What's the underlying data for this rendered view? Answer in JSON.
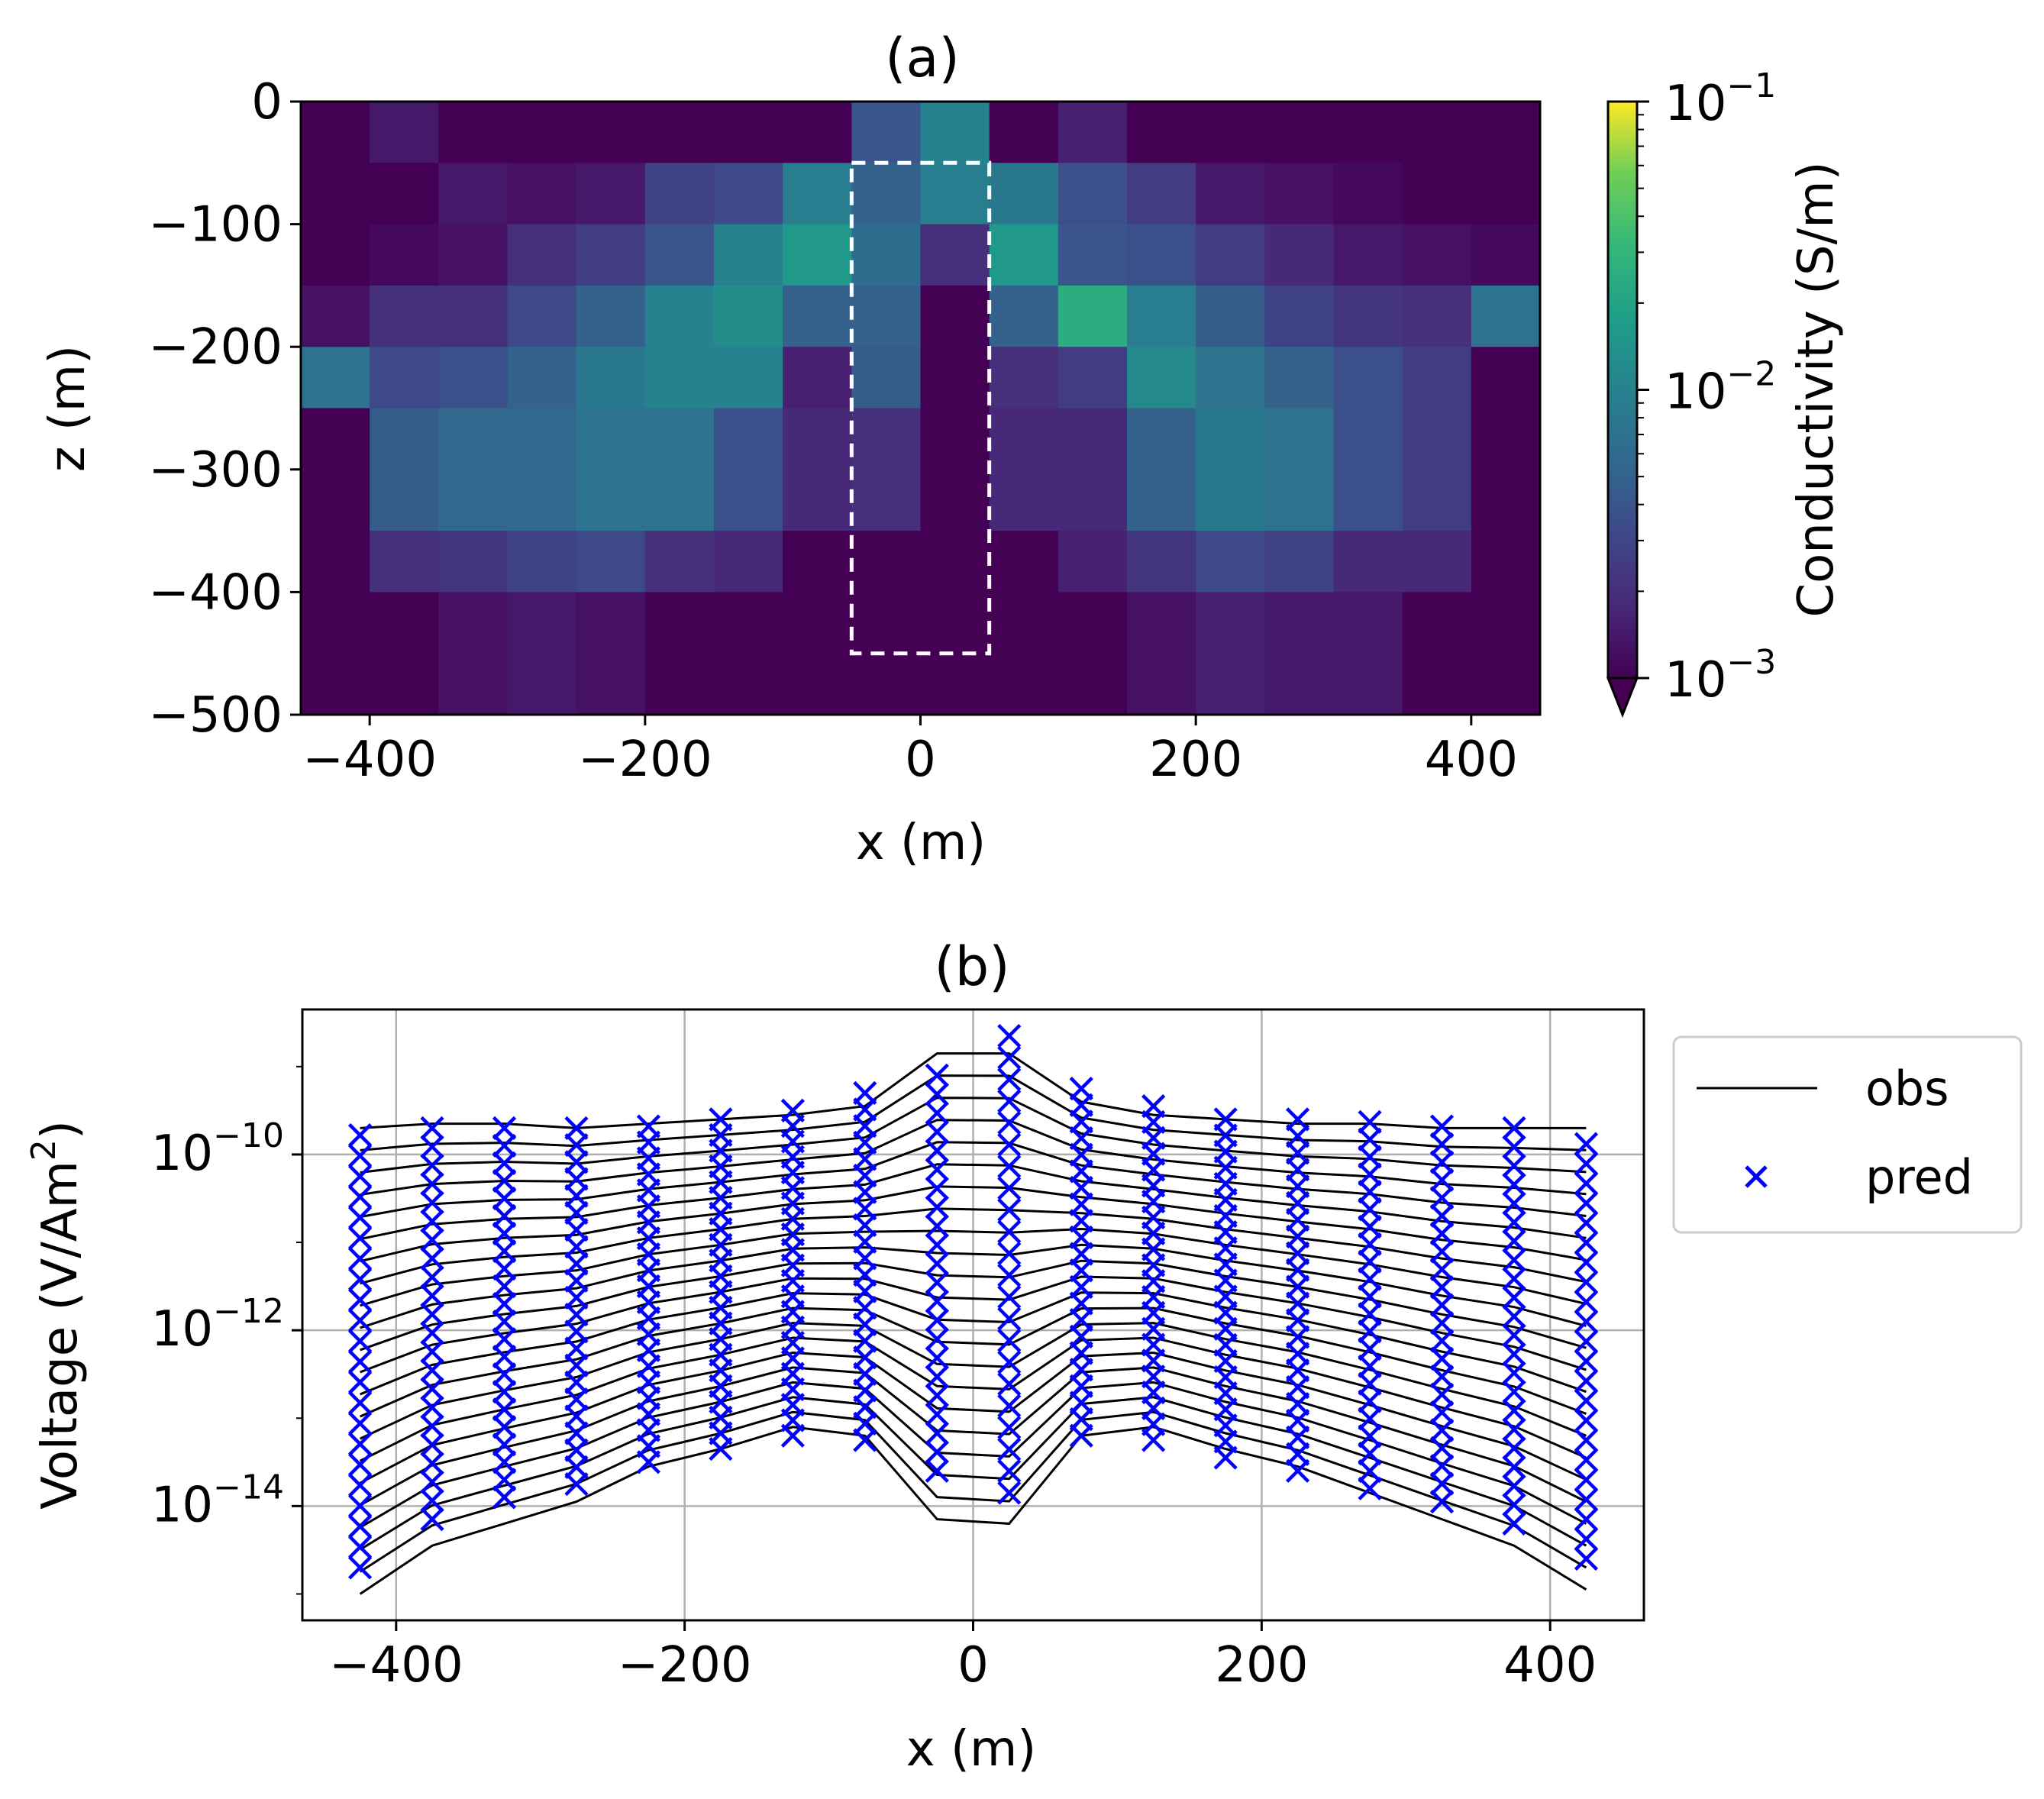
{
  "chart_data": [
    {
      "type": "heatmap",
      "title": "(a)",
      "xlabel": "x (m)",
      "ylabel": "z (m)",
      "xlim": [
        -450,
        450
      ],
      "ylim": [
        -500,
        0
      ],
      "x_edges": [
        -450,
        -400,
        -350,
        -300,
        -250,
        -200,
        -150,
        -100,
        -50,
        0,
        50,
        100,
        150,
        200,
        250,
        300,
        350,
        400,
        450
      ],
      "z_edges": [
        0,
        -50,
        -100,
        -150,
        -200,
        -250,
        -300,
        -350,
        -400,
        -450,
        -500
      ],
      "xticks": [
        -400,
        -200,
        0,
        200,
        400
      ],
      "xtick_labels": [
        "−400",
        "−200",
        "0",
        "200",
        "400"
      ],
      "yticks": [
        0,
        -100,
        -200,
        -300,
        -400,
        -500
      ],
      "ytick_labels": [
        "0",
        "−100",
        "−200",
        "−300",
        "−400",
        "−500"
      ],
      "log10_conductivity_rows_top_to_bottom": [
        [
          -3.0,
          -2.85,
          -3.0,
          -3.0,
          -3.0,
          -3.0,
          -3.0,
          -3.0,
          -2.4,
          -2.0,
          -3.0,
          -2.8,
          -3.0,
          -3.0,
          -3.0,
          -3.0,
          -3.0,
          -3.0
        ],
        [
          -3.0,
          -3.0,
          -2.85,
          -2.9,
          -2.85,
          -2.55,
          -2.5,
          -2.05,
          -2.3,
          -2.05,
          -2.1,
          -2.45,
          -2.6,
          -2.85,
          -2.9,
          -2.95,
          -3.0,
          -3.0
        ],
        [
          -3.0,
          -2.95,
          -2.9,
          -2.7,
          -2.6,
          -2.4,
          -2.0,
          -1.8,
          -2.2,
          -2.7,
          -1.8,
          -2.4,
          -2.45,
          -2.6,
          -2.75,
          -2.85,
          -2.9,
          -2.95
        ],
        [
          -2.9,
          -2.7,
          -2.7,
          -2.5,
          -2.3,
          -2.0,
          -1.9,
          -2.3,
          -2.3,
          -3.0,
          -2.3,
          -1.6,
          -2.05,
          -2.35,
          -2.55,
          -2.65,
          -2.7,
          -2.15
        ],
        [
          -2.15,
          -2.5,
          -2.45,
          -2.3,
          -2.1,
          -2.0,
          -2.0,
          -2.8,
          -2.35,
          -3.0,
          -2.7,
          -2.6,
          -1.95,
          -2.15,
          -2.3,
          -2.45,
          -2.6,
          -3.0
        ],
        [
          -3.0,
          -2.35,
          -2.25,
          -2.25,
          -2.15,
          -2.15,
          -2.45,
          -2.75,
          -2.7,
          -3.0,
          -2.75,
          -2.75,
          -2.3,
          -2.1,
          -2.15,
          -2.45,
          -2.6,
          -3.0
        ],
        [
          -3.0,
          -2.7,
          -2.65,
          -2.55,
          -2.5,
          -2.7,
          -2.75,
          -3.0,
          -3.0,
          -3.0,
          -3.0,
          -2.8,
          -2.65,
          -2.5,
          -2.55,
          -2.75,
          -2.75,
          -3.0
        ],
        [
          -3.0,
          -3.0,
          -2.9,
          -2.85,
          -2.9,
          -3.0,
          -3.0,
          -3.0,
          -3.0,
          -3.0,
          -3.0,
          -3.0,
          -2.9,
          -2.8,
          -2.85,
          -2.85,
          -3.0,
          -3.0
        ]
      ],
      "row_spans": [
        [
          0,
          -50
        ],
        [
          -50,
          -100
        ],
        [
          -100,
          -150
        ],
        [
          -150,
          -200
        ],
        [
          -200,
          -250
        ],
        [
          -250,
          -350
        ],
        [
          -350,
          -400
        ],
        [
          -400,
          -500
        ]
      ],
      "dashed_box": {
        "x": [
          -50,
          50
        ],
        "z": [
          -450,
          -50
        ]
      },
      "colorbar": {
        "label": "Conductivity (S/m)",
        "scale": "log",
        "range": [
          0.001,
          0.1
        ],
        "tick_bases": [
          "10",
          "10",
          "10"
        ],
        "tick_exponents": [
          "−1",
          "−2",
          "−3"
        ],
        "extend": "min",
        "colormap": "viridis"
      }
    },
    {
      "type": "line",
      "title": "(b)",
      "xlabel": "x (m)",
      "ylabel_main": "Voltage (V/Am",
      "ylabel_sup": "2",
      "ylabel_end": ")",
      "yscale": "log",
      "xlim": [
        -465,
        465
      ],
      "log10_ylim": [
        -15.3,
        -8.35
      ],
      "xticks": [
        -400,
        -200,
        0,
        200,
        400
      ],
      "xtick_labels": [
        "−400",
        "−200",
        "0",
        "200",
        "400"
      ],
      "ytick_log10": [
        -10,
        -12,
        -14
      ],
      "ytick_bases": [
        "10",
        "10",
        "10"
      ],
      "ytick_exponents": [
        "−10",
        "−12",
        "−14"
      ],
      "grid": true,
      "stations_x": [
        -425,
        -375,
        -325,
        -275,
        -225,
        -175,
        -125,
        -75,
        -25,
        25,
        75,
        125,
        175,
        225,
        275,
        325,
        375,
        425
      ],
      "n_time_channels": 22,
      "obs_top_log10": [
        -9.7,
        -9.65,
        -9.65,
        -9.7,
        -9.65,
        -9.6,
        -9.55,
        -9.45,
        -8.85,
        -8.85,
        -9.4,
        -9.55,
        -9.6,
        -9.65,
        -9.65,
        -9.7,
        -9.7,
        -9.7
      ],
      "obs_bottom_log10": [
        -15.0,
        -14.45,
        -14.2,
        -13.95,
        -13.55,
        -13.35,
        -13.1,
        -13.2,
        -14.15,
        -14.2,
        -13.2,
        -13.1,
        -13.35,
        -13.55,
        -13.85,
        -14.15,
        -14.45,
        -14.95
      ],
      "pred_top_log10": [
        -9.78,
        -9.7,
        -9.7,
        -9.7,
        -9.68,
        -9.6,
        -9.5,
        -9.3,
        -9.1,
        -8.65,
        -9.25,
        -9.45,
        -9.6,
        -9.6,
        -9.63,
        -9.68,
        -9.7,
        -9.88
      ],
      "pred_bottom_log10": [
        -14.7,
        -14.15,
        -13.9,
        -13.75,
        -13.5,
        -13.35,
        -13.2,
        -13.25,
        -13.6,
        -13.85,
        -13.2,
        -13.25,
        -13.45,
        -13.6,
        -13.8,
        -13.95,
        -14.2,
        -14.6
      ],
      "series": [
        {
          "name": "obs",
          "color": "#000000",
          "marker": "line"
        },
        {
          "name": "pred",
          "color": "#0000ff",
          "marker": "x"
        }
      ],
      "legend_position": "outside-top-right"
    }
  ]
}
